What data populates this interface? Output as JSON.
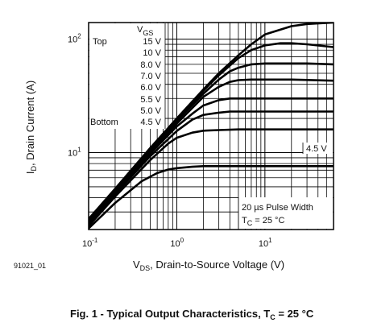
{
  "chart_data": {
    "type": "line",
    "title": "Fig. 1 - Typical Output Characteristics, T",
    "title_sub": "C",
    "title_tail": " = 25 °C",
    "figure_id": "91021_01",
    "xlabel_main": "V",
    "xlabel_sub": "DS",
    "xlabel_tail": ", Drain-to-Source Voltage (V)",
    "ylabel_main": "I",
    "ylabel_sub": "D",
    "ylabel_tail": ", Drain Current (A)",
    "x_scale": "log",
    "y_scale": "log",
    "xlim": [
      0.1,
      60
    ],
    "ylim": [
      2.1,
      140
    ],
    "grid": true,
    "x_ticks": [
      {
        "value": 0.1,
        "base": "10",
        "exp": "-1"
      },
      {
        "value": 1,
        "base": "10",
        "exp": "0"
      },
      {
        "value": 10,
        "base": "10",
        "exp": "1"
      }
    ],
    "y_ticks": [
      {
        "value": 10,
        "base": "10",
        "exp": "1"
      },
      {
        "value": 100,
        "base": "10",
        "exp": "2"
      }
    ],
    "legend": {
      "header_main": "V",
      "header_sub": "GS",
      "top_label": "Top",
      "bottom_label": "Bottom",
      "entries": [
        "15 V",
        "10 V",
        "8.0 V",
        "7.0 V",
        "6.0 V",
        "5.5 V",
        "5.0 V",
        "4.5 V"
      ]
    },
    "annotations": {
      "curve_label": "4.5 V",
      "pulse_width": "20 µs Pulse Width",
      "tc_main": "T",
      "tc_sub": "C",
      "tc_tail": " = 25 °C"
    },
    "series": [
      {
        "name": "15 V",
        "x": [
          0.1,
          0.2,
          0.5,
          1,
          2,
          3,
          5,
          7,
          10,
          20,
          30,
          60
        ],
        "y": [
          2.6,
          4.8,
          11,
          20,
          36,
          50,
          72,
          90,
          110,
          130,
          136,
          140
        ]
      },
      {
        "name": "10 V",
        "x": [
          0.1,
          0.2,
          0.5,
          1,
          2,
          3,
          5,
          7,
          10,
          15,
          20,
          30,
          60
        ],
        "y": [
          2.55,
          4.7,
          10.8,
          19.5,
          35,
          48,
          68,
          80,
          88,
          92,
          92,
          90,
          85
        ]
      },
      {
        "name": "8.0 V",
        "x": [
          0.1,
          0.2,
          0.5,
          1,
          2,
          3,
          4,
          5,
          7,
          10,
          20,
          30,
          60
        ],
        "y": [
          2.5,
          4.6,
          10.5,
          19,
          33,
          44,
          52,
          56,
          60,
          61,
          61,
          61,
          60
        ]
      },
      {
        "name": "7.0 V",
        "x": [
          0.1,
          0.2,
          0.5,
          1,
          2,
          3,
          4,
          5,
          7,
          10,
          20,
          60
        ],
        "y": [
          2.45,
          4.5,
          10.2,
          18,
          31,
          38,
          42,
          43.5,
          44,
          44,
          44,
          43
        ]
      },
      {
        "name": "6.0 V",
        "x": [
          0.1,
          0.2,
          0.5,
          1,
          1.5,
          2,
          3,
          4,
          5,
          10,
          20,
          60
        ],
        "y": [
          2.4,
          4.4,
          9.8,
          17,
          22,
          26,
          29,
          30,
          30,
          30,
          30,
          30
        ]
      },
      {
        "name": "5.5 V",
        "x": [
          0.1,
          0.2,
          0.5,
          1,
          1.5,
          2,
          3,
          4,
          5,
          10,
          20,
          60
        ],
        "y": [
          2.35,
          4.3,
          9.3,
          15.5,
          19.5,
          21.5,
          22.5,
          23,
          23,
          23,
          23,
          23
        ]
      },
      {
        "name": "5.0 V",
        "x": [
          0.1,
          0.2,
          0.5,
          0.8,
          1,
          1.5,
          2,
          3,
          5,
          10,
          20,
          60
        ],
        "y": [
          2.25,
          4.1,
          8.6,
          12,
          13.5,
          15,
          15.6,
          15.8,
          16,
          16,
          16,
          16
        ]
      },
      {
        "name": "4.5 V",
        "x": [
          0.1,
          0.2,
          0.4,
          0.6,
          0.8,
          1,
          1.5,
          2,
          3,
          5,
          10,
          20,
          60
        ],
        "y": [
          2.15,
          3.6,
          5.6,
          6.6,
          7.1,
          7.3,
          7.5,
          7.6,
          7.6,
          7.6,
          7.6,
          7.6,
          7.6
        ]
      }
    ]
  }
}
